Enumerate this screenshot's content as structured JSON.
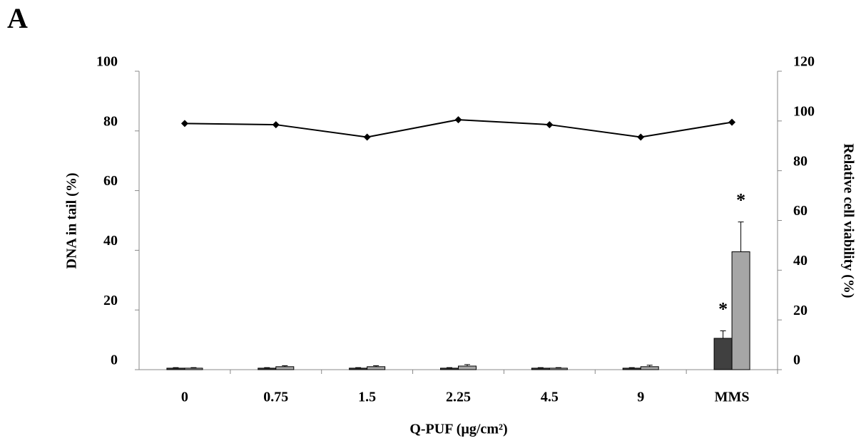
{
  "panel_label": "A",
  "chart_data": {
    "type": "bar",
    "xlabel": "Q-PUF (µg/cm²)",
    "ylabel": "DNA in tail (%)",
    "y2label": "Relative cell viability (%)",
    "categories": [
      "0",
      "0.75",
      "1.5",
      "2.25",
      "4.5",
      "9",
      "MMS"
    ],
    "ylim": [
      0,
      100
    ],
    "yticks": [
      0,
      20,
      40,
      60,
      80,
      100
    ],
    "y2lim": [
      0,
      120
    ],
    "y2ticks": [
      0,
      20,
      40,
      60,
      80,
      100,
      120
    ],
    "series": [
      {
        "color": "#404040",
        "values": [
          0.5,
          0.5,
          0.5,
          0.5,
          0.5,
          0.5,
          10.5
        ],
        "errors": [
          0.2,
          0.2,
          0.2,
          0.2,
          0.2,
          0.2,
          2.5
        ],
        "annotation": {
          "category": "MMS",
          "text": "*"
        }
      },
      {
        "color": "#a6a6a6",
        "values": [
          0.5,
          1,
          1,
          1.2,
          0.5,
          1,
          39.5
        ],
        "errors": [
          0.2,
          0.3,
          0.3,
          0.5,
          0.2,
          0.5,
          10
        ],
        "annotation": {
          "category": "MMS",
          "text": "*"
        }
      },
      {
        "type": "line",
        "axis": "y2",
        "color": "#000000",
        "values": [
          99,
          98.5,
          93.5,
          100.5,
          98.5,
          93.5,
          99.5
        ]
      }
    ]
  }
}
